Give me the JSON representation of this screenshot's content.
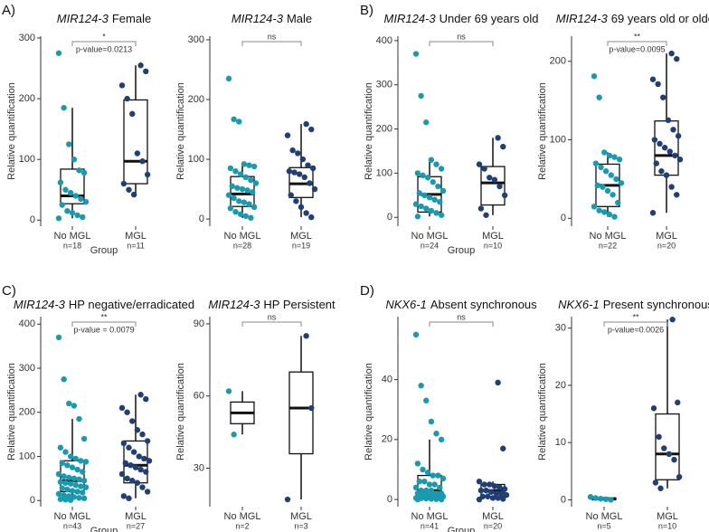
{
  "panel_labels": [
    "A)",
    "B)",
    "C)",
    "D)"
  ],
  "chart_data": [
    {
      "type": "box",
      "title_gene": "MIR124-3",
      "title": "Female",
      "ylabel": "Relative quantification",
      "xlabel": "Group",
      "categories": [
        "No MGL",
        "MGL"
      ],
      "group_sizes": [
        "n=18",
        "n=11"
      ],
      "significance": "*",
      "p_value": "p-value=0.0213",
      "ylim": [
        -10,
        303
      ],
      "yticks": [
        0,
        100,
        200,
        300
      ],
      "series": [
        {
          "color": "#1a9aae",
          "values": [
            275,
            185,
            125,
            100,
            82,
            78,
            62,
            50,
            45,
            40,
            35,
            30,
            25,
            15,
            12,
            8,
            5,
            3
          ],
          "whisker_low": 3,
          "q1": 27,
          "median": 40,
          "q3": 84,
          "whisker_high": 185
        },
        {
          "color": "#1f3f75",
          "values": [
            255,
            245,
            222,
            200,
            175,
            110,
            97,
            75,
            60,
            50,
            42
          ],
          "whisker_low": 42,
          "q1": 60,
          "median": 97,
          "q3": 198,
          "whisker_high": 255
        }
      ]
    },
    {
      "type": "box",
      "title_gene": "MIR124-3",
      "title": "Male",
      "ylabel": "Relative quantification",
      "categories": [
        "No MGL",
        "MGL"
      ],
      "group_sizes": [
        "n=28",
        "n=19"
      ],
      "significance": "ns",
      "ylim": [
        -12,
        306
      ],
      "yticks": [
        0,
        100,
        200,
        300
      ],
      "series": [
        {
          "color": "#1a9aae",
          "values": [
            235,
            167,
            163,
            92,
            90,
            88,
            85,
            80,
            75,
            70,
            65,
            60,
            55,
            52,
            50,
            48,
            45,
            40,
            35,
            30,
            28,
            25,
            20,
            18,
            12,
            8,
            5,
            2
          ],
          "whisker_low": 2,
          "q1": 21,
          "median": 42,
          "q3": 71,
          "whisker_high": 92
        },
        {
          "color": "#1f3f75",
          "values": [
            159,
            150,
            140,
            115,
            110,
            100,
            90,
            85,
            80,
            78,
            75,
            70,
            60,
            50,
            40,
            30,
            20,
            10,
            3
          ],
          "whisker_low": 3,
          "q1": 36,
          "median": 59,
          "q3": 86,
          "whisker_high": 159
        }
      ]
    },
    {
      "type": "box",
      "title_gene": "MIR124-3",
      "title": "Under 69 years old",
      "ylabel": "Relative quantification",
      "xlabel": "Group",
      "categories": [
        "No MGL",
        "MGL"
      ],
      "group_sizes": [
        "n=24",
        "n=10"
      ],
      "significance": "ns",
      "ylim": [
        -20,
        410
      ],
      "yticks": [
        0,
        100,
        200,
        300,
        400
      ],
      "series": [
        {
          "color": "#1a9aae",
          "values": [
            370,
            275,
            215,
            130,
            120,
            110,
            100,
            95,
            90,
            80,
            70,
            60,
            55,
            50,
            45,
            40,
            35,
            30,
            25,
            20,
            15,
            10,
            5,
            2
          ],
          "whisker_low": 2,
          "q1": 12,
          "median": 52,
          "q3": 92,
          "whisker_high": 130
        },
        {
          "color": "#1f3f75",
          "values": [
            180,
            160,
            120,
            110,
            90,
            85,
            70,
            50,
            20,
            5
          ],
          "whisker_low": 5,
          "q1": 28,
          "median": 78,
          "q3": 115,
          "whisker_high": 180
        }
      ]
    },
    {
      "type": "box",
      "title_gene": "MIR124-3",
      "title": "69 years old or older",
      "ylabel": "Relative quantification",
      "categories": [
        "No MGL",
        "MGL"
      ],
      "group_sizes": [
        "n=22",
        "n=20"
      ],
      "significance": "**",
      "p_value": "p-value=0.0095",
      "ylim": [
        -10,
        232
      ],
      "yticks": [
        0,
        100,
        200
      ],
      "series": [
        {
          "color": "#1a9aae",
          "values": [
            181,
            154,
            84,
            80,
            78,
            75,
            70,
            65,
            60,
            55,
            50,
            45,
            42,
            40,
            35,
            30,
            20,
            15,
            10,
            8,
            5,
            2
          ],
          "whisker_low": 2,
          "q1": 15,
          "median": 42,
          "q3": 69,
          "whisker_high": 84
        },
        {
          "color": "#1f3f75",
          "values": [
            210,
            203,
            177,
            171,
            154,
            125,
            113,
            105,
            100,
            95,
            90,
            85,
            80,
            75,
            70,
            60,
            55,
            40,
            30,
            7
          ],
          "whisker_low": 7,
          "q1": 55,
          "median": 80,
          "q3": 124,
          "whisker_high": 210
        }
      ]
    },
    {
      "type": "box",
      "title_gene": "MIR124-3",
      "title": "HP negative/erradicated",
      "ylabel": "Relative quantification",
      "xlabel": "Group",
      "categories": [
        "No MGL",
        "MGL"
      ],
      "group_sizes": [
        "n=43",
        "n=27"
      ],
      "significance": "**",
      "p_value": "p-value = 0.0079",
      "ylim": [
        -14,
        417
      ],
      "yticks": [
        0,
        100,
        200,
        300,
        400
      ],
      "series": [
        {
          "color": "#1a9aae",
          "values": [
            370,
            275,
            220,
            215,
            185,
            140,
            120,
            110,
            100,
            95,
            90,
            88,
            85,
            80,
            75,
            70,
            65,
            60,
            55,
            52,
            50,
            48,
            45,
            42,
            40,
            38,
            35,
            32,
            30,
            28,
            25,
            22,
            20,
            18,
            15,
            12,
            10,
            8,
            6,
            5,
            3,
            2,
            1
          ],
          "whisker_low": 1,
          "q1": 20,
          "median": 45,
          "q3": 90,
          "whisker_high": 185
        },
        {
          "color": "#1f3f75",
          "values": [
            240,
            230,
            210,
            200,
            180,
            160,
            150,
            135,
            130,
            120,
            110,
            100,
            95,
            90,
            85,
            80,
            75,
            70,
            65,
            60,
            50,
            45,
            40,
            30,
            20,
            10,
            5
          ],
          "whisker_low": 5,
          "q1": 40,
          "median": 80,
          "q3": 135,
          "whisker_high": 240
        }
      ]
    },
    {
      "type": "box",
      "title_gene": "MIR124-3",
      "title": "HP Persistent",
      "ylabel": "Relative quantification",
      "categories": [
        "No MGL",
        "MGL"
      ],
      "group_sizes": [
        "n=2",
        "n=3"
      ],
      "significance": "ns",
      "ylim": [
        14,
        93
      ],
      "yticks": [
        30,
        60,
        90
      ],
      "series": [
        {
          "color": "#1a9aae",
          "values": [
            62,
            44
          ],
          "whisker_low": 44,
          "q1": 48.5,
          "median": 53,
          "q3": 57.5,
          "whisker_high": 62
        },
        {
          "color": "#1f3f75",
          "values": [
            85,
            55,
            17
          ],
          "whisker_low": 17,
          "q1": 36,
          "median": 55,
          "q3": 70,
          "whisker_high": 85
        }
      ]
    },
    {
      "type": "box",
      "title_gene": "NKX6-1",
      "title": "Absent synchronous",
      "ylabel": "Relative quantification",
      "xlabel": "Group",
      "categories": [
        "No MGL",
        "MGL"
      ],
      "group_sizes": [
        "n=41",
        "n=20"
      ],
      "significance": "ns",
      "ylim": [
        -2.4,
        61
      ],
      "yticks": [
        0,
        20,
        40
      ],
      "series": [
        {
          "color": "#1a9aae",
          "values": [
            55,
            38,
            33,
            26,
            22,
            20,
            12,
            10,
            9,
            8,
            8,
            7,
            6,
            6,
            5,
            5,
            4,
            4,
            3,
            3,
            3,
            2,
            2,
            2,
            2,
            1.5,
            1.5,
            1,
            1,
            1,
            1,
            0.8,
            0.6,
            0.5,
            0.5,
            0.4,
            0.3,
            0.2,
            0.1,
            0,
            0
          ],
          "whisker_low": 0,
          "q1": 1,
          "median": 3,
          "q3": 8,
          "whisker_high": 20
        },
        {
          "color": "#1f3f75",
          "values": [
            39,
            17,
            6,
            5,
            5,
            4.5,
            4,
            3.5,
            3,
            3,
            2.5,
            2,
            2,
            1.5,
            1,
            1,
            0.5,
            0.5,
            0.2,
            0
          ],
          "whisker_low": 0,
          "q1": 1,
          "median": 3,
          "q3": 5,
          "whisker_high": 6
        }
      ]
    },
    {
      "type": "box",
      "title_gene": "NKX6-1",
      "title": "Present synchronous",
      "ylabel": "Relative quantification",
      "categories": [
        "No MGL",
        "MGL"
      ],
      "group_sizes": [
        "n=5",
        "n=10"
      ],
      "significance": "**",
      "p_value": "p-value=0.0026",
      "ylim": [
        -1.2,
        32
      ],
      "yticks": [
        0,
        10,
        20,
        30
      ],
      "series": [
        {
          "color": "#1a9aae",
          "values": [
            0.5,
            0.3,
            0.2,
            0.1,
            0
          ],
          "whisker_low": 0,
          "q1": 0,
          "median": 0.2,
          "q3": 0.3,
          "whisker_high": 0.5
        },
        {
          "color": "#1f3f75",
          "values": [
            31.5,
            17,
            16,
            11,
            9,
            8,
            7,
            4,
            3,
            2
          ],
          "whisker_low": 2,
          "q1": 3.5,
          "median": 8,
          "q3": 15,
          "whisker_high": 31.5
        }
      ]
    }
  ]
}
